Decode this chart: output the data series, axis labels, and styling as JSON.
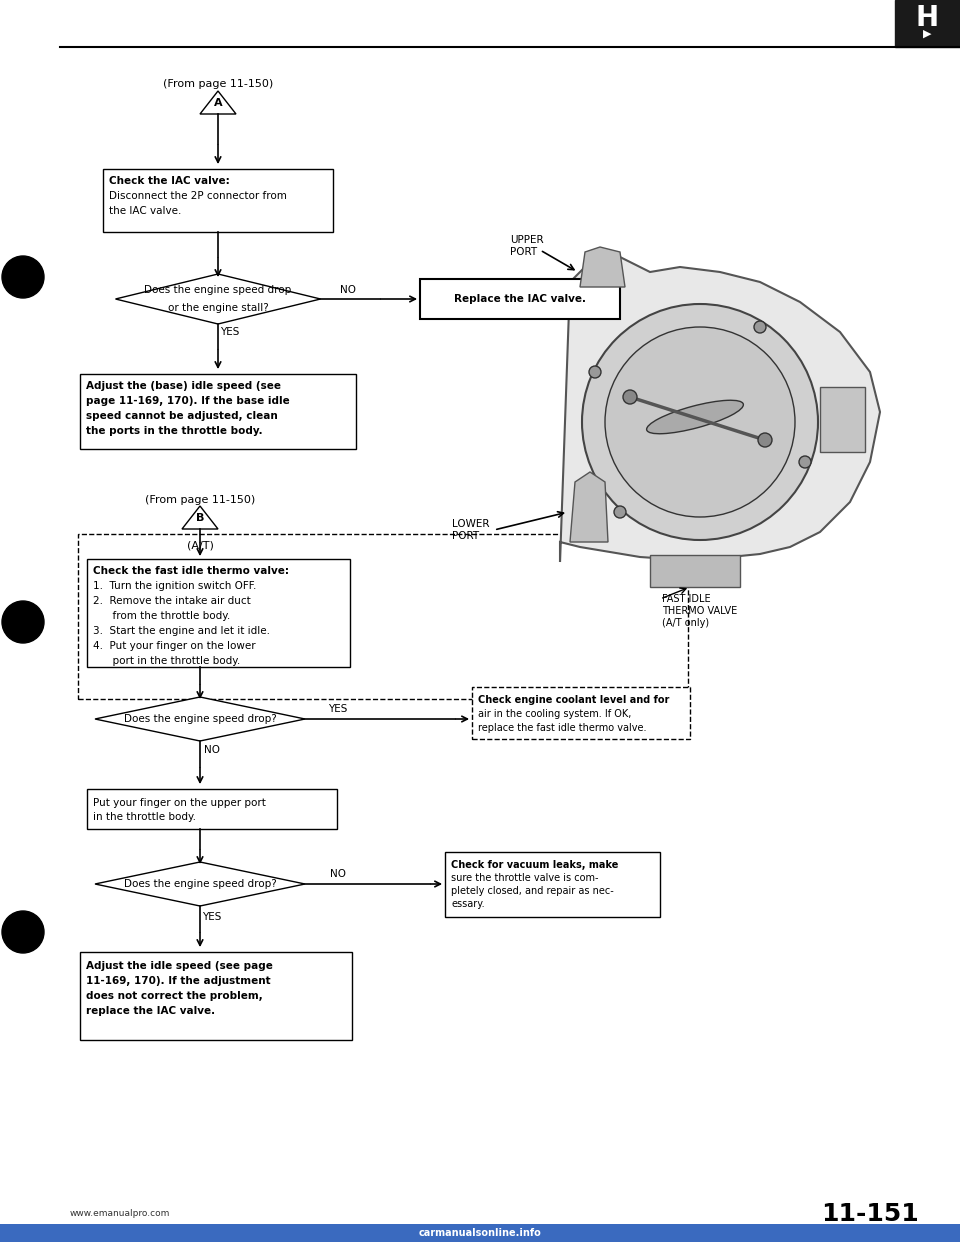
{
  "page_num": "11-151",
  "bg_color": "#ffffff",
  "line_color": "#000000",
  "from_page_A": "(From page 11-150)",
  "from_page_B": "(From page 11-150)",
  "label_A": "A",
  "label_B": "B",
  "label_AT": "(A/T)",
  "box1_bold": "Check the IAC valve:",
  "box1_line2": "Disconnect the 2P connector from",
  "box1_line3": "the IAC valve.",
  "diamond1_line1": "Does the engine speed drop",
  "diamond1_line2": "or the engine stall?",
  "no1_label": "NO",
  "yes1_label": "YES",
  "replace_box_text": "Replace the IAC valve.",
  "box2_line1": "Adjust the (base) idle speed (see",
  "box2_line2": "page 11-169, 170). If the base idle",
  "box2_line3": "speed cannot be adjusted, clean",
  "box2_line4": "the ports in the throttle body.",
  "thermo_bold": "Check the fast idle thermo valve:",
  "thermo_line2": "1.  Turn the ignition switch OFF.",
  "thermo_line3": "2.  Remove the intake air duct",
  "thermo_line4": "      from the throttle body.",
  "thermo_line5": "3.  Start the engine and let it idle.",
  "thermo_line6": "4.  Put your finger on the lower",
  "thermo_line7": "      port in the throttle body.",
  "diamond2_text": "Does the engine speed drop?",
  "yes2_label": "YES",
  "no2_label": "NO",
  "coolant_line1": "Check engine coolant level and for",
  "coolant_line2": "air in the cooling system. If OK,",
  "coolant_line3": "replace the fast idle thermo valve.",
  "box3_line1": "Put your finger on the upper port",
  "box3_line2": "in the throttle body.",
  "diamond3_text": "Does the engine speed drop?",
  "no3_label": "NO",
  "yes3_label": "YES",
  "vacuum_line1": "Check for vacuum leaks, make",
  "vacuum_line2": "sure the throttle valve is com-",
  "vacuum_line3": "pletely closed, and repair as nec-",
  "vacuum_line4": "essary.",
  "box4_line1": "Adjust the idle speed (see page",
  "box4_line2": "11-169, 170). If the adjustment",
  "box4_line3": "does not correct the problem,",
  "box4_line4": "replace the IAC valve.",
  "upper_port_line1": "UPPER",
  "upper_port_line2": "PORT",
  "lower_port_line1": "LOWER",
  "lower_port_line2": "PORT",
  "fast_idle_line1": "FAST IDLE",
  "fast_idle_line2": "THERMO VALVE",
  "fast_idle_line3": "(A/T only)",
  "website": "www.emanualpro.com",
  "footer_logo": "carmanualsonline.info"
}
